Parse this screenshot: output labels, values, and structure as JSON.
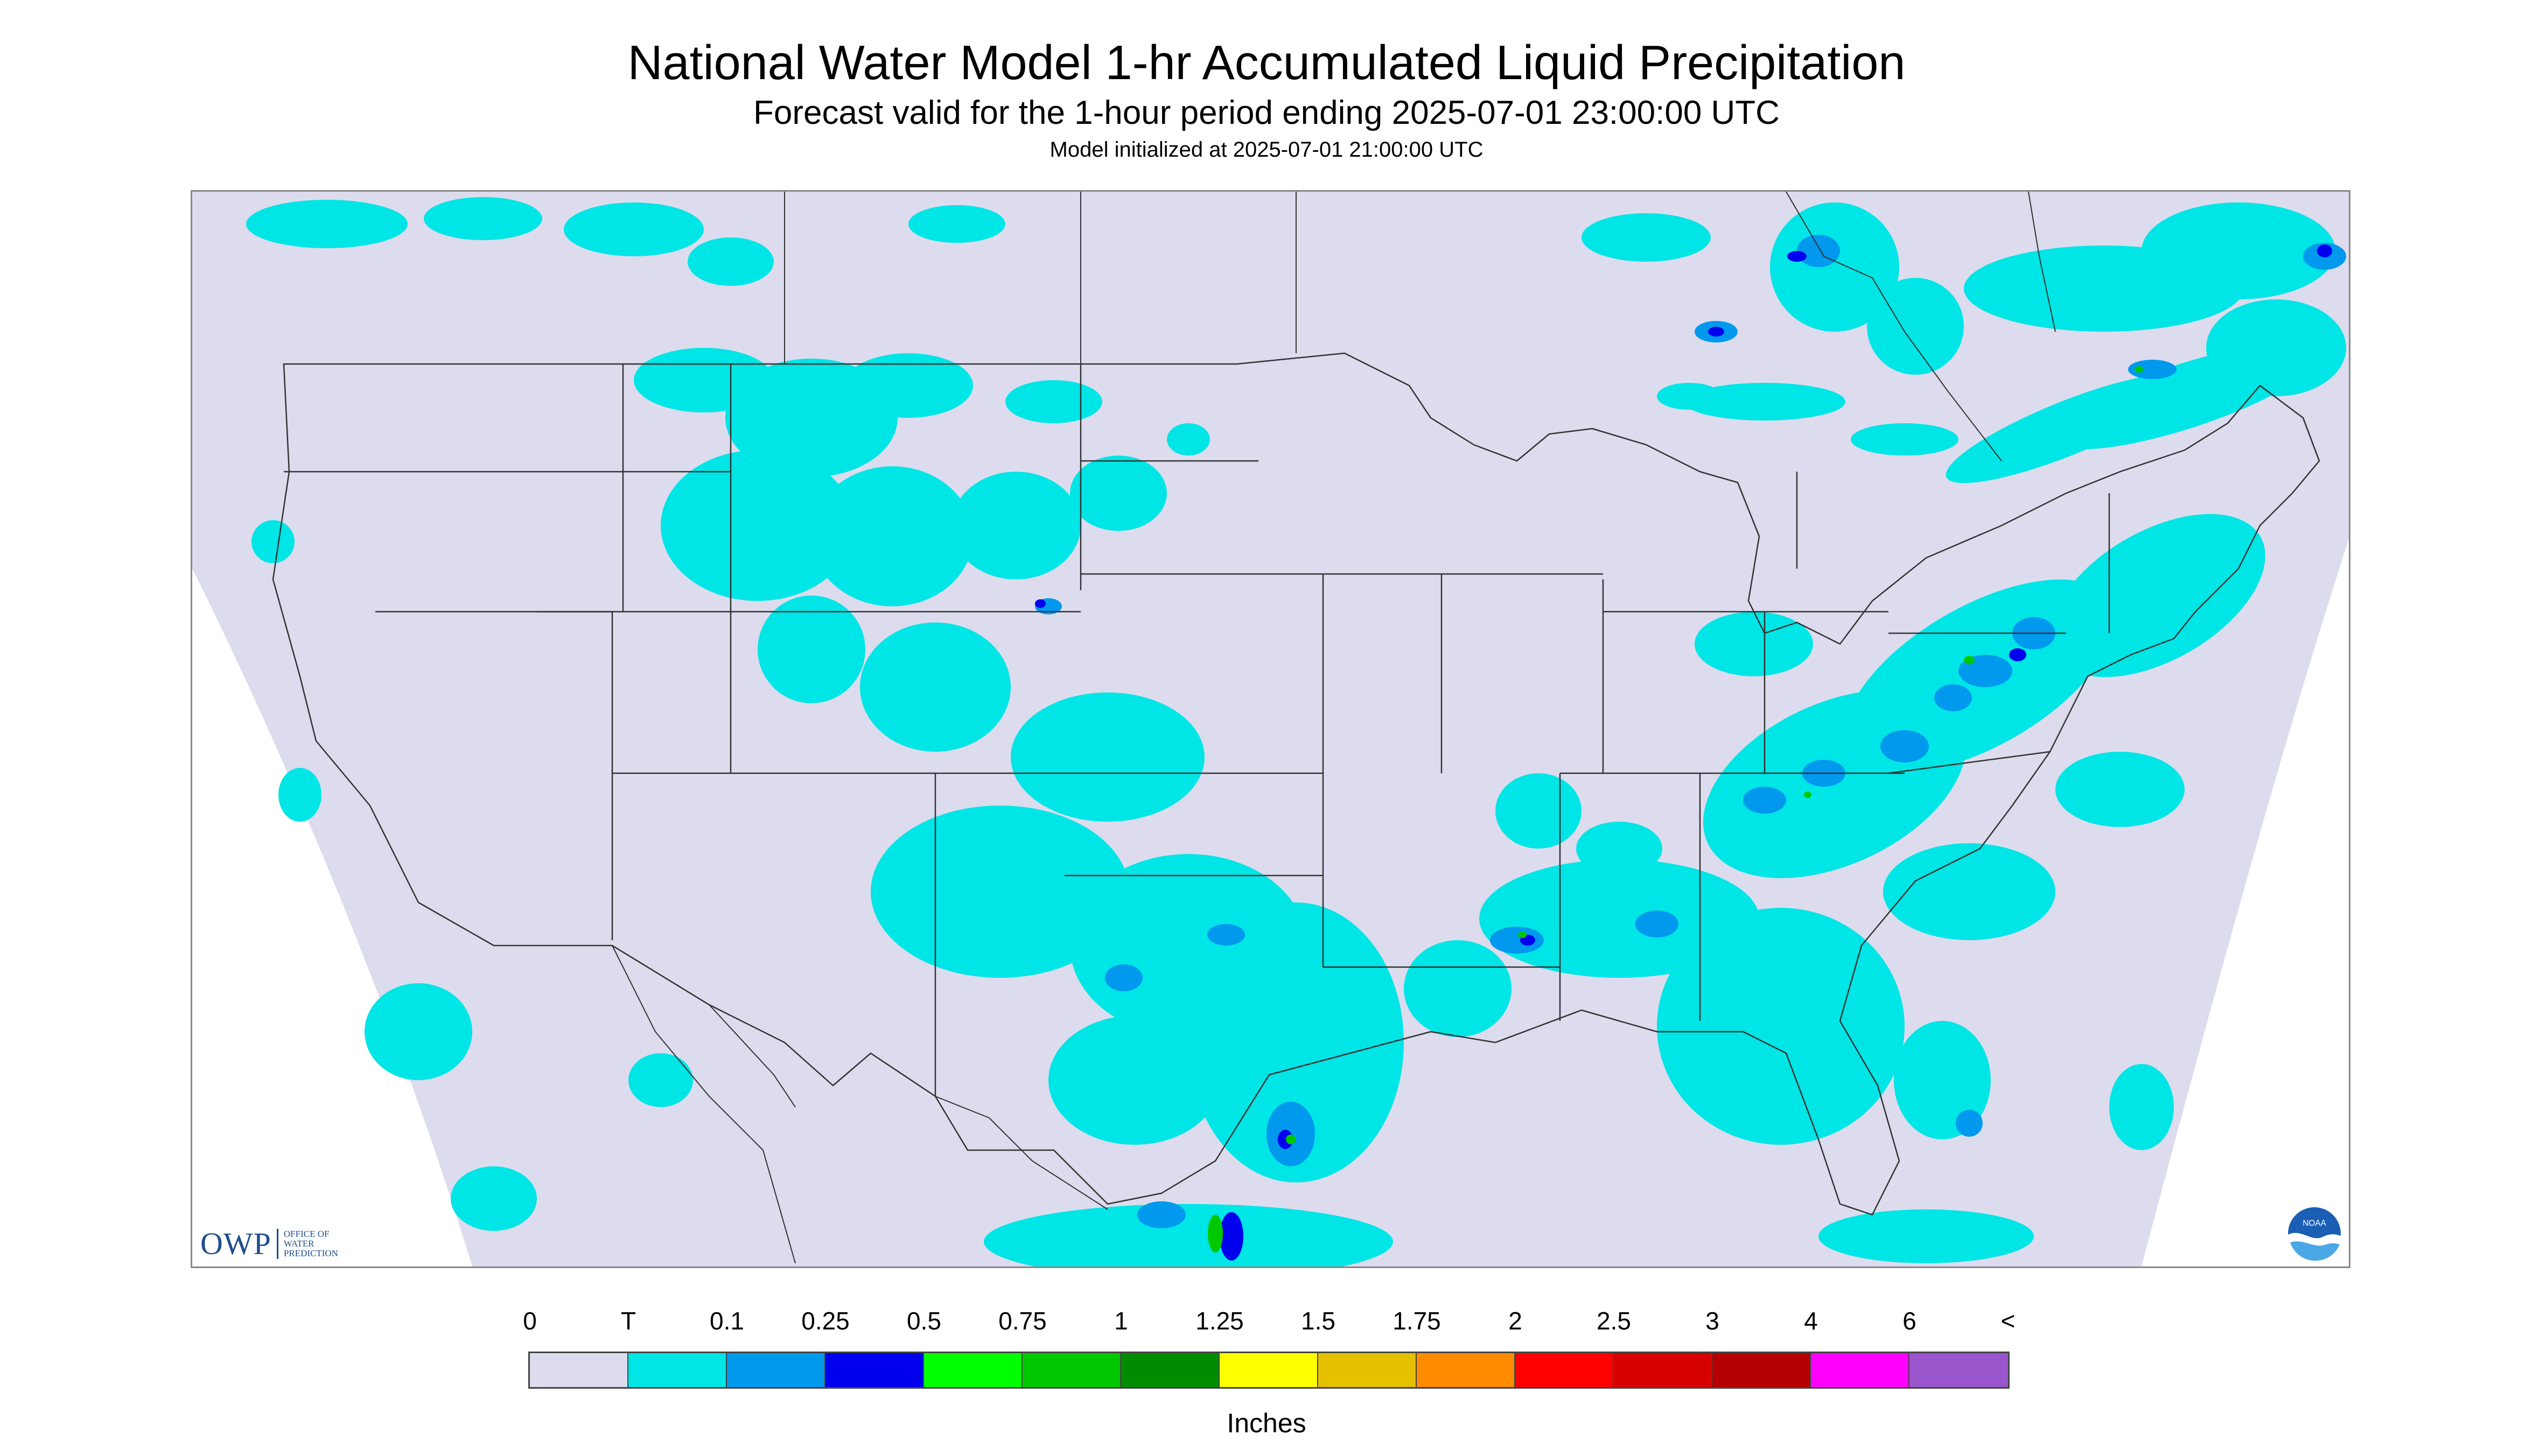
{
  "header": {
    "title": "National Water Model 1-hr Accumulated Liquid Precipitation",
    "subtitle": "Forecast valid for the 1-hour period ending 2025-07-01 23:00:00 UTC",
    "init_line": "Model initialized at 2025-07-01 21:00:00 UTC"
  },
  "logos": {
    "owp_mark": "OWP",
    "owp_line1": "OFFICE OF",
    "owp_line2": "WATER",
    "owp_line3": "PREDICTION",
    "noaa": "NOAA"
  },
  "legend": {
    "units": "Inches",
    "labels": [
      "0",
      "T",
      "0.1",
      "0.25",
      "0.5",
      "0.75",
      "1",
      "1.25",
      "1.5",
      "1.75",
      "2",
      "2.5",
      "3",
      "4",
      "6",
      "<"
    ],
    "colors": [
      "#dcdcee",
      "#00e5e5",
      "#0099ee",
      "#0000ee",
      "#00ff00",
      "#00c800",
      "#008c00",
      "#ffff00",
      "#e5c100",
      "#ff8c00",
      "#ff0000",
      "#d70000",
      "#b40000",
      "#ff00ff",
      "#9955cc"
    ]
  },
  "colors": {
    "no_data": "#ffffff",
    "domain_fill": "#dcdcee",
    "boundary": "#333333",
    "light_rain": "#00e5e5",
    "medium_rain": "#0099ee",
    "heavy_rain": "#0000ee",
    "very_heavy_rain": "#00c800"
  }
}
